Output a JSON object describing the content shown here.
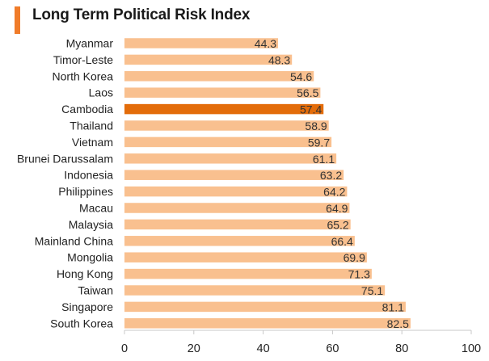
{
  "chart_data": {
    "type": "bar",
    "orientation": "horizontal",
    "title": "Long Term Political Risk Index",
    "categories": [
      "Myanmar",
      "Timor-Leste",
      "North Korea",
      "Laos",
      "Cambodia",
      "Thailand",
      "Vietnam",
      "Brunei Darussalam",
      "Indonesia",
      "Philippines",
      "Macau",
      "Malaysia",
      "Mainland China",
      "Mongolia",
      "Hong Kong",
      "Taiwan",
      "Singapore",
      "South Korea"
    ],
    "values": [
      44.3,
      48.3,
      54.6,
      56.5,
      57.4,
      58.9,
      59.7,
      61.1,
      63.2,
      64.2,
      64.9,
      65.2,
      66.4,
      69.9,
      71.3,
      75.1,
      81.1,
      82.5
    ],
    "highlight": "Cambodia",
    "xlim": [
      0,
      100
    ],
    "xticks": [
      0,
      20,
      40,
      60,
      80,
      100
    ],
    "grid": false,
    "legend": "none",
    "colors": {
      "bar": "#f9c08f",
      "highlight": "#e36c0a",
      "title_accent": "#f07c2a",
      "axis": "#c8c8c8"
    }
  }
}
